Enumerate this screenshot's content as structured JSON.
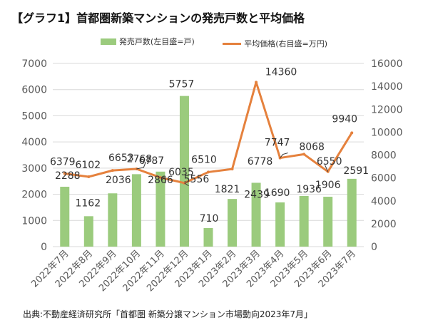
{
  "title": "【グラフ1】首都圏新築マンションの発売戸数と平均価格",
  "source": "出典:不動産経済研究所「首都圏 新築分譲マンション市場動向2023年7月」",
  "colors": {
    "bar": "#9BCB7D",
    "line": "#E5813D",
    "grid": "#D9D9D9",
    "axis_text": "#595959"
  },
  "chart_data": {
    "type": "bar",
    "categories": [
      "2022年7月",
      "2022年8月",
      "2022年9月",
      "2022年10月",
      "2022年11月",
      "2022年12月",
      "2023年1月",
      "2023年2月",
      "2023年3月",
      "2023年4月",
      "2023年5月",
      "2023年6月",
      "2023年7月"
    ],
    "series": [
      {
        "name": "発売戸数(左目盛=戸)",
        "type": "bar",
        "axis": "left",
        "values": [
          2288,
          1162,
          2036,
          2768,
          2866,
          5757,
          710,
          1821,
          2439,
          1690,
          1936,
          1906,
          2591
        ]
      },
      {
        "name": "平均価格(右目盛=万円)",
        "type": "line",
        "axis": "right",
        "values": [
          6379,
          6102,
          6653,
          6787,
          6035,
          5556,
          6510,
          6778,
          14360,
          7747,
          8068,
          6550,
          9940
        ]
      }
    ],
    "y_left": {
      "min": 0,
      "max": 7000,
      "ticks": [
        0,
        1000,
        2000,
        3000,
        4000,
        5000,
        6000,
        7000
      ]
    },
    "y_right": {
      "min": 0,
      "max": 16000,
      "ticks": [
        0,
        2000,
        4000,
        6000,
        8000,
        10000,
        12000,
        14000,
        16000
      ]
    },
    "grid": true,
    "legend_position": "top"
  }
}
